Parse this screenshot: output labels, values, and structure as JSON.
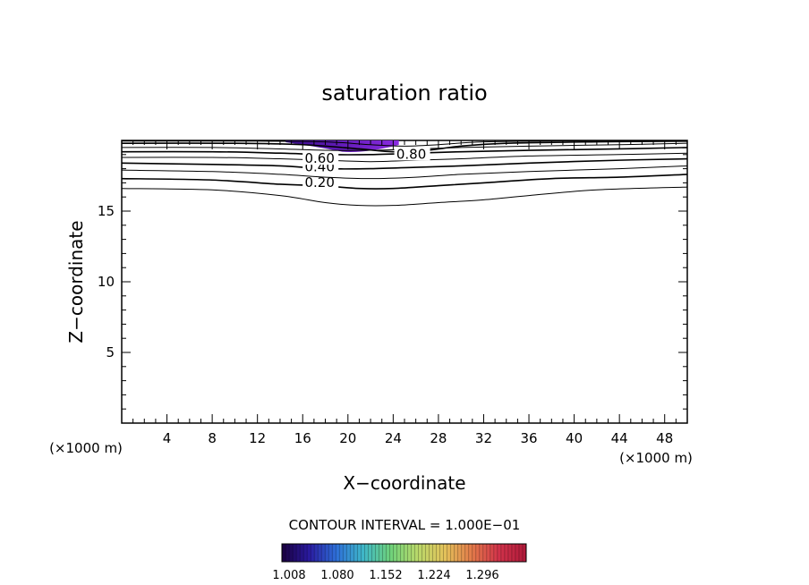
{
  "chart_data": {
    "type": "contour",
    "title": "saturation ratio",
    "xlabel": "X−coordinate",
    "ylabel": "Z−coordinate",
    "x_unit_label": "(×1000 m)",
    "z_unit_label": "(×1000 m)",
    "xlim": [
      0,
      50
    ],
    "ylim": [
      0,
      20
    ],
    "x_ticks": [
      4,
      8,
      12,
      16,
      20,
      24,
      28,
      32,
      36,
      40,
      44,
      48
    ],
    "y_ticks": [
      5,
      10,
      15
    ],
    "x_minor_step": 1,
    "y_minor_step": 1,
    "contour_interval_text": "CONTOUR INTERVAL = 1.000E−01",
    "contour_lines": [
      {
        "level": 0.1,
        "points": [
          [
            0,
            16.6
          ],
          [
            8,
            16.5
          ],
          [
            14,
            16.1
          ],
          [
            18,
            15.6
          ],
          [
            21,
            15.4
          ],
          [
            24,
            15.4
          ],
          [
            28,
            15.6
          ],
          [
            32,
            15.8
          ],
          [
            36,
            16.1
          ],
          [
            42,
            16.5
          ],
          [
            50,
            16.7
          ]
        ]
      },
      {
        "level": 0.2,
        "label": "0.20",
        "label_at": [
          17.5,
          16.9
        ],
        "points": [
          [
            0,
            17.3
          ],
          [
            8,
            17.2
          ],
          [
            14,
            16.9
          ],
          [
            17.5,
            16.8
          ],
          [
            21,
            16.6
          ],
          [
            24,
            16.6
          ],
          [
            28,
            16.8
          ],
          [
            32,
            17.0
          ],
          [
            38,
            17.3
          ],
          [
            44,
            17.4
          ],
          [
            50,
            17.6
          ]
        ]
      },
      {
        "level": 0.3,
        "points": [
          [
            0,
            17.9
          ],
          [
            8,
            17.8
          ],
          [
            14,
            17.6
          ],
          [
            18,
            17.4
          ],
          [
            22,
            17.3
          ],
          [
            26,
            17.4
          ],
          [
            30,
            17.6
          ],
          [
            36,
            17.8
          ],
          [
            44,
            18.0
          ],
          [
            50,
            18.2
          ]
        ]
      },
      {
        "level": 0.4,
        "label": "0.40",
        "label_at": [
          17.5,
          18.0
        ],
        "points": [
          [
            0,
            18.4
          ],
          [
            8,
            18.3
          ],
          [
            14,
            18.2
          ],
          [
            18,
            18.0
          ],
          [
            22,
            18.0
          ],
          [
            26,
            18.1
          ],
          [
            30,
            18.2
          ],
          [
            36,
            18.4
          ],
          [
            44,
            18.6
          ],
          [
            50,
            18.7
          ]
        ]
      },
      {
        "level": 0.5,
        "points": [
          [
            0,
            18.8
          ],
          [
            8,
            18.8
          ],
          [
            14,
            18.7
          ],
          [
            18,
            18.6
          ],
          [
            22,
            18.5
          ],
          [
            26,
            18.6
          ],
          [
            30,
            18.7
          ],
          [
            36,
            18.9
          ],
          [
            44,
            19.0
          ],
          [
            50,
            19.1
          ]
        ]
      },
      {
        "level": 0.6,
        "label": "0.60",
        "label_at": [
          17.5,
          18.6
        ],
        "points": [
          [
            0,
            19.2
          ],
          [
            8,
            19.2
          ],
          [
            14,
            19.1
          ],
          [
            18,
            19.0
          ],
          [
            22,
            19.0
          ],
          [
            26,
            19.1
          ],
          [
            30,
            19.2
          ],
          [
            36,
            19.3
          ],
          [
            44,
            19.4
          ],
          [
            50,
            19.5
          ]
        ]
      },
      {
        "level": 0.7,
        "points": [
          [
            0,
            19.5
          ],
          [
            8,
            19.5
          ],
          [
            14,
            19.4
          ],
          [
            18,
            19.3
          ],
          [
            22,
            19.3
          ],
          [
            26,
            19.4
          ],
          [
            30,
            19.5
          ],
          [
            36,
            19.6
          ],
          [
            44,
            19.7
          ],
          [
            50,
            19.8
          ]
        ]
      },
      {
        "level": 0.8,
        "label": "0.80",
        "label_at": [
          25.6,
          18.9
        ],
        "points": [
          [
            0,
            19.8
          ],
          [
            10,
            19.8
          ],
          [
            16,
            19.7
          ],
          [
            21,
            19.4
          ],
          [
            24,
            19.2
          ],
          [
            27,
            19.3
          ],
          [
            30,
            19.6
          ],
          [
            34,
            19.8
          ],
          [
            42,
            19.9
          ],
          [
            50,
            19.95
          ]
        ]
      },
      {
        "level": 0.9,
        "points": [
          [
            0,
            19.95
          ],
          [
            12,
            19.95
          ],
          [
            18,
            19.9
          ],
          [
            22,
            19.7
          ],
          [
            25,
            19.6
          ],
          [
            28,
            19.7
          ],
          [
            32,
            19.9
          ],
          [
            40,
            19.97
          ],
          [
            50,
            20
          ]
        ]
      }
    ],
    "shaded_region": {
      "x": [
        14.5,
        24.5
      ],
      "z": [
        19.2,
        20
      ],
      "color_start": "#3a0c8f",
      "color_end": "#8b2be2"
    },
    "colorbar": {
      "ticks": [
        "1.008",
        "1.080",
        "1.152",
        "1.224",
        "1.296"
      ],
      "colors": [
        "#1a003f",
        "#2a1aa0",
        "#2e6fd8",
        "#3fb7c8",
        "#6ed17a",
        "#b9d86a",
        "#e3c25a",
        "#e37a4a",
        "#d1324a",
        "#b01a3a"
      ]
    }
  }
}
